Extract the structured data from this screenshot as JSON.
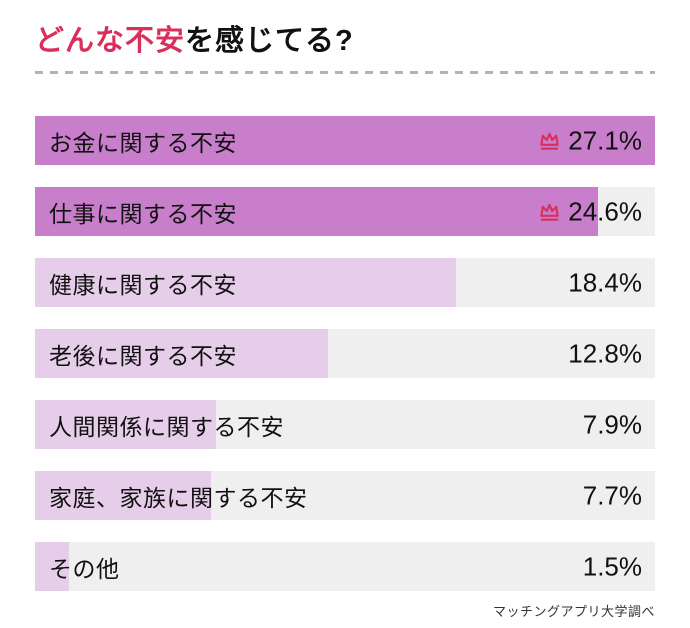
{
  "title": {
    "highlight": "どんな不安",
    "rest": "を感じてる?"
  },
  "source": "マッチングアプリ大学調べ",
  "chart_data": {
    "type": "bar",
    "orientation": "horizontal",
    "title": "どんな不安を感じてる?",
    "categories": [
      "お金に関する不安",
      "仕事に関する不安",
      "健康に関する不安",
      "老後に関する不安",
      "人間関係に関する不安",
      "家庭、家族に関する不安",
      "その他"
    ],
    "values": [
      27.1,
      24.6,
      18.4,
      12.8,
      7.9,
      7.7,
      1.5
    ],
    "value_labels": [
      "27.1%",
      "24.6%",
      "18.4%",
      "12.8%",
      "7.9%",
      "7.7%",
      "1.5%"
    ],
    "crowned": [
      true,
      true,
      false,
      false,
      false,
      false,
      false
    ],
    "xlim": [
      0,
      27.1
    ],
    "legend": false,
    "grid": false,
    "colors": {
      "bar_top": "#c87ecb",
      "bar_normal": "#e6cde9",
      "row_background": "#efefef",
      "accent_red": "#d8305b"
    }
  }
}
